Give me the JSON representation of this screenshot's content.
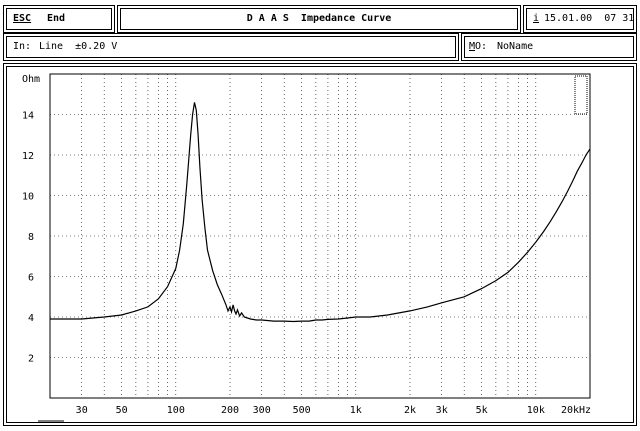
{
  "header": {
    "esc_key": "ESC",
    "end_label": "End",
    "title": "D A A S  Impedance Curve",
    "info_key": "i",
    "datetime": "15.01.00  07 31"
  },
  "status": {
    "input_label": "In:",
    "input_value": "Line  ±0.20 V",
    "mo_key": "M",
    "mo_rest": "O:",
    "mo_value": "NoName"
  },
  "chart_data": {
    "type": "line",
    "ylabel": "Ohm",
    "ylim": [
      0,
      16
    ],
    "xlim": [
      20,
      20000
    ],
    "x_scale": "log",
    "grid": true,
    "y_ticks": [
      2,
      4,
      6,
      8,
      10,
      12,
      14
    ],
    "y_tick_labels": [
      "2",
      "4",
      "6",
      "8",
      "10",
      "12",
      "14"
    ],
    "x_ticks": [
      30,
      50,
      100,
      200,
      300,
      500,
      1000,
      2000,
      3000,
      5000,
      10000,
      20000
    ],
    "x_tick_labels": [
      "30",
      "50",
      "100",
      "200",
      "300",
      "500",
      "1k",
      "2k",
      "3k",
      "5k",
      "10k",
      "20kHz"
    ],
    "series": [
      {
        "color": "#000000",
        "x": [
          20,
          30,
          40,
          50,
          60,
          70,
          80,
          90,
          100,
          105,
          110,
          115,
          118,
          121,
          124,
          127,
          130,
          133,
          136,
          140,
          145,
          150,
          160,
          170,
          180,
          190,
          195,
          200,
          204,
          208,
          212,
          216,
          220,
          226,
          232,
          240,
          250,
          260,
          280,
          300,
          350,
          400,
          450,
          500,
          550,
          600,
          650,
          700,
          800,
          900,
          1000,
          1200,
          1500,
          2000,
          2500,
          3000,
          4000,
          5000,
          6000,
          7000,
          8000,
          9000,
          10000,
          11000,
          12000,
          13000,
          14000,
          15000,
          16000,
          17000,
          18000,
          19000,
          20000
        ],
        "y": [
          3.9,
          3.9,
          4.0,
          4.1,
          4.3,
          4.5,
          4.9,
          5.5,
          6.4,
          7.3,
          8.6,
          10.5,
          11.8,
          13.0,
          14.0,
          14.6,
          14.2,
          13.0,
          11.4,
          9.8,
          8.4,
          7.3,
          6.3,
          5.6,
          5.1,
          4.6,
          4.3,
          4.5,
          4.25,
          4.6,
          4.3,
          4.15,
          4.35,
          4.05,
          4.2,
          4.0,
          3.95,
          3.9,
          3.85,
          3.85,
          3.8,
          3.8,
          3.78,
          3.8,
          3.8,
          3.85,
          3.85,
          3.88,
          3.9,
          3.95,
          4.0,
          4.0,
          4.1,
          4.3,
          4.5,
          4.7,
          5.0,
          5.4,
          5.8,
          6.2,
          6.7,
          7.2,
          7.7,
          8.2,
          8.7,
          9.2,
          9.7,
          10.2,
          10.7,
          11.2,
          11.6,
          12.0,
          12.3
        ]
      }
    ]
  }
}
